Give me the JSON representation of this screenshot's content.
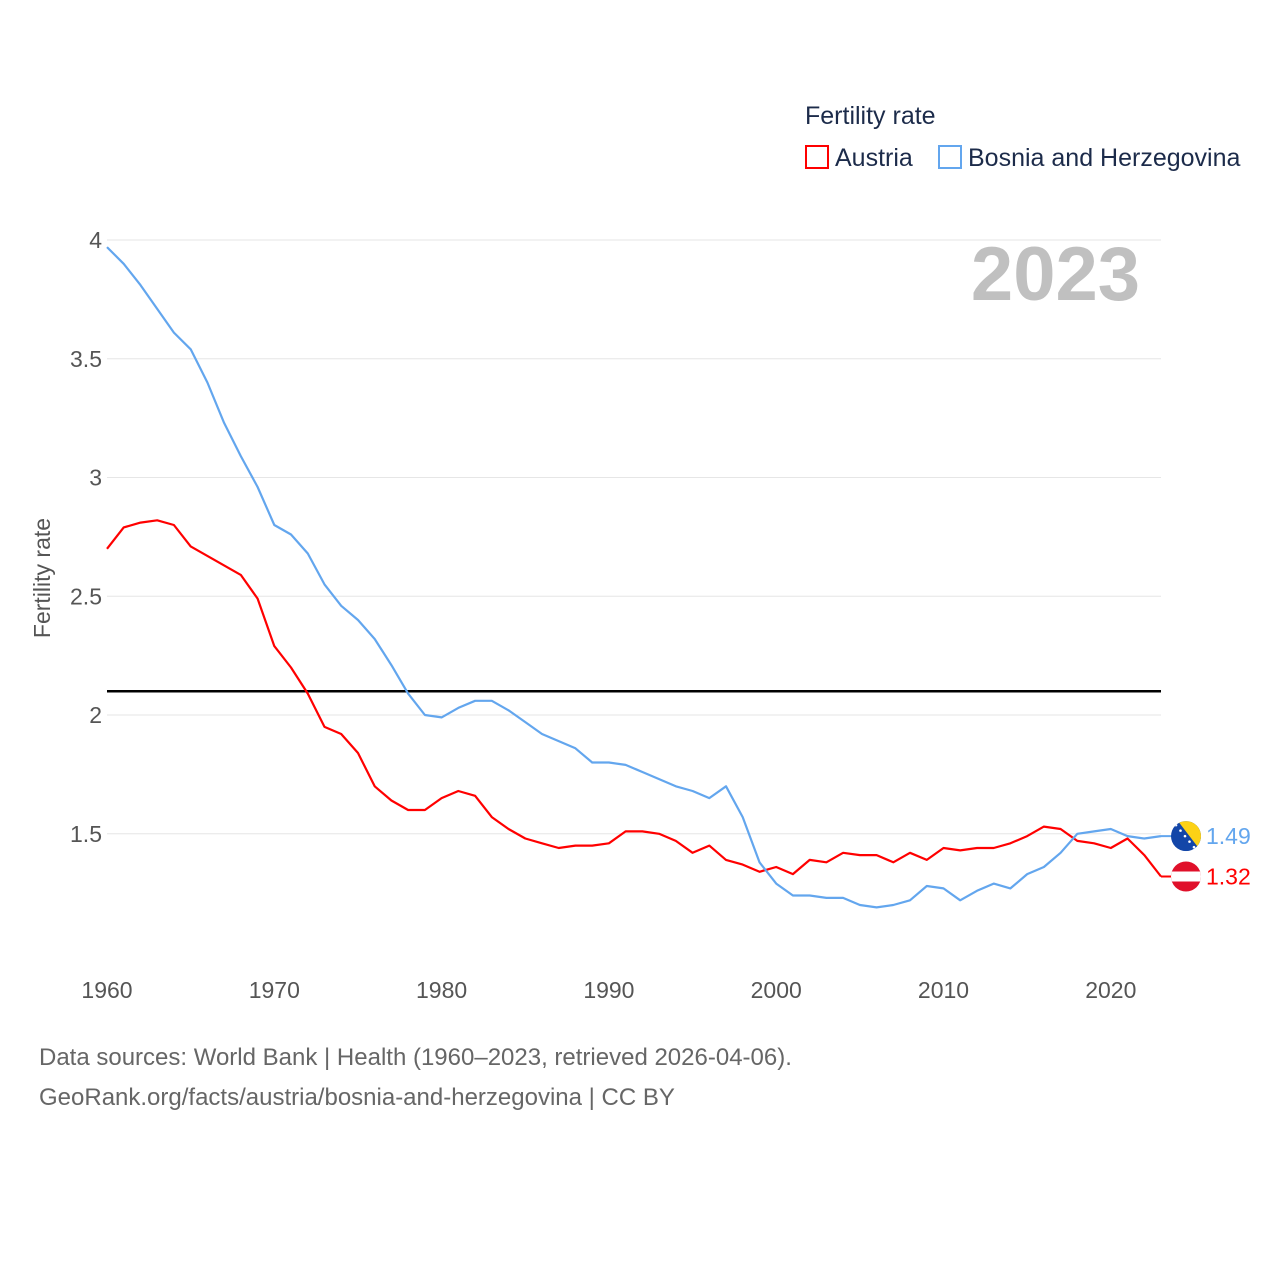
{
  "chart_data": {
    "type": "line",
    "watermark_year": "2023",
    "legend_title": "Fertility rate",
    "legend_placement": "top-right",
    "ylabel": "Fertility rate",
    "xlabel": "",
    "ylim": [
      1.0,
      4.0
    ],
    "xlim": [
      1960,
      2023
    ],
    "y_ticks": [
      1.5,
      2,
      2.5,
      3,
      3.5,
      4
    ],
    "y_tick_labels": [
      "1.5",
      "2",
      "2.5",
      "3",
      "3.5",
      "4"
    ],
    "x_ticks": [
      1960,
      1970,
      1980,
      1990,
      2000,
      2010,
      2020
    ],
    "x_tick_labels": [
      "1960",
      "1970",
      "1980",
      "1990",
      "2000",
      "2010",
      "2020"
    ],
    "grid": true,
    "reference_line": 2.1,
    "x_start": 1960,
    "series": [
      {
        "name": "Austria",
        "color": "#ff0000",
        "end_label": "1.32",
        "flag": "austria-flag",
        "values": [
          2.7,
          2.79,
          2.81,
          2.82,
          2.8,
          2.71,
          2.67,
          2.63,
          2.59,
          2.49,
          2.29,
          2.2,
          2.09,
          1.95,
          1.92,
          1.84,
          1.7,
          1.64,
          1.6,
          1.6,
          1.65,
          1.68,
          1.66,
          1.57,
          1.52,
          1.48,
          1.46,
          1.44,
          1.45,
          1.45,
          1.46,
          1.51,
          1.51,
          1.5,
          1.47,
          1.42,
          1.45,
          1.39,
          1.37,
          1.34,
          1.36,
          1.33,
          1.39,
          1.38,
          1.42,
          1.41,
          1.41,
          1.38,
          1.42,
          1.39,
          1.44,
          1.43,
          1.44,
          1.44,
          1.46,
          1.49,
          1.53,
          1.52,
          1.47,
          1.46,
          1.44,
          1.48,
          1.41,
          1.32
        ]
      },
      {
        "name": "Bosnia and Herzegovina",
        "color": "#63a6ee",
        "end_label": "1.49",
        "flag": "bosnia-flag",
        "values": [
          3.97,
          3.9,
          3.81,
          3.71,
          3.61,
          3.54,
          3.4,
          3.23,
          3.09,
          2.96,
          2.8,
          2.76,
          2.68,
          2.55,
          2.46,
          2.4,
          2.32,
          2.21,
          2.09,
          2.0,
          1.99,
          2.03,
          2.06,
          2.06,
          2.02,
          1.97,
          1.92,
          1.89,
          1.86,
          1.8,
          1.8,
          1.79,
          1.76,
          1.73,
          1.7,
          1.68,
          1.65,
          1.7,
          1.57,
          1.38,
          1.29,
          1.24,
          1.24,
          1.23,
          1.23,
          1.2,
          1.19,
          1.2,
          1.22,
          1.28,
          1.27,
          1.22,
          1.26,
          1.29,
          1.27,
          1.33,
          1.36,
          1.42,
          1.5,
          1.51,
          1.52,
          1.49,
          1.48,
          1.49
        ]
      }
    ]
  },
  "footer": {
    "line1": "Data sources: World Bank | Health (1960–2023, retrieved 2026-04-06).",
    "line2": "GeoRank.org/facts/austria/bosnia-and-herzegovina | CC BY"
  }
}
